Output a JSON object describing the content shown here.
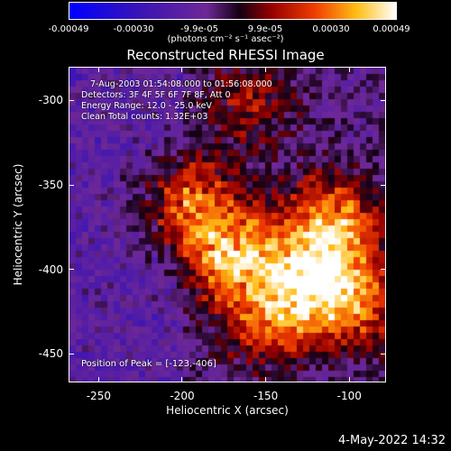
{
  "colorbar": {
    "ticks": [
      "-0.00049",
      "-0.00030",
      "-9.9e-05",
      "9.9e-05",
      "0.00030",
      "0.00049"
    ],
    "units": "(photons cm⁻² s⁻¹ asec⁻²)"
  },
  "annotations": {
    "time": "7-Aug-2003 01:54:08.000 to 01:56:08.000",
    "detectors": "Detectors: 3F 4F 5F 6F 7F 8F, Att 0",
    "energy": "Energy Range: 12.0 - 25.0 keV",
    "clean": "Clean     Total counts: 1.32E+03",
    "peak": "Position of Peak = [-123,-406]"
  },
  "timestamp": "4-May-2022 14:32",
  "chart_data": {
    "type": "heatmap",
    "title": "Reconstructed RHESSI Image",
    "xlabel": "Heliocentric X (arcsec)",
    "ylabel": "Heliocentric Y (arcsec)",
    "xlim": [
      -268,
      -78
    ],
    "ylim": [
      -467,
      -280
    ],
    "xticks": [
      -250,
      -200,
      -150,
      -100
    ],
    "yticks": [
      -300,
      -350,
      -400,
      -450
    ],
    "colorbar_range": [
      -0.00049,
      0.00049
    ],
    "peak": [
      -123,
      -406
    ],
    "sources": [
      {
        "x": -198,
        "y": -360,
        "value": 0.00035
      },
      {
        "x": -170,
        "y": -390,
        "value": 0.00045
      },
      {
        "x": -123,
        "y": -406,
        "value": 0.00049
      },
      {
        "x": -110,
        "y": -370,
        "value": 0.0004
      },
      {
        "x": -150,
        "y": -430,
        "value": 0.0003
      },
      {
        "x": -92,
        "y": -420,
        "value": 0.0003
      },
      {
        "x": -160,
        "y": -300,
        "value": 0.0002
      }
    ]
  }
}
